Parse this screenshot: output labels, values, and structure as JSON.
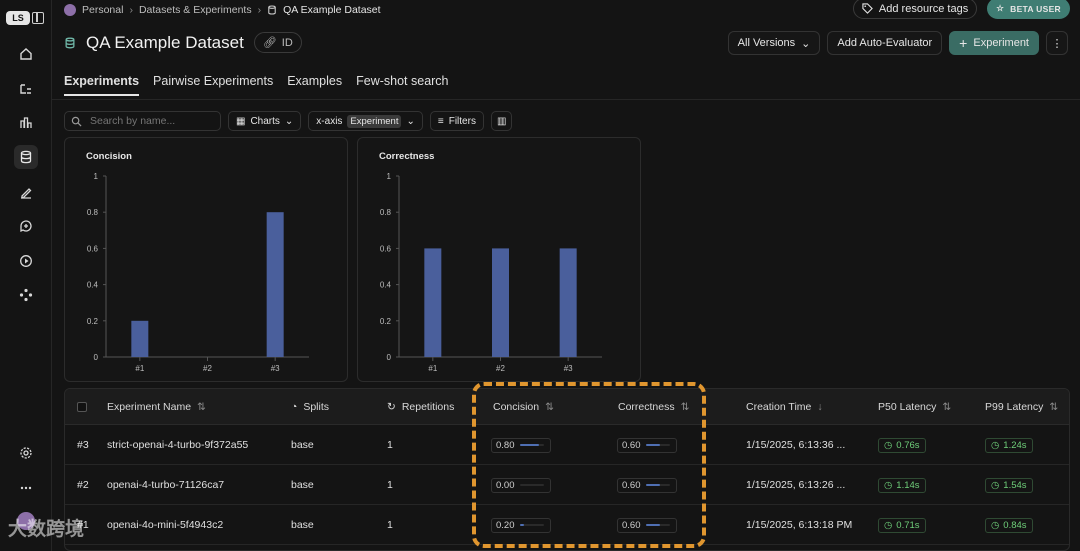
{
  "breadcrumb": {
    "items": [
      "Personal",
      "Datasets & Experiments",
      "QA Example Dataset"
    ]
  },
  "top_right": {
    "tags_label": "Add resource tags",
    "beta_label": "BETA USER"
  },
  "header": {
    "title": "QA Example Dataset",
    "id_label": "ID"
  },
  "actions": {
    "versions_label": "All Versions",
    "auto_eval_label": "Add Auto-Evaluator",
    "experiment_label": "Experiment"
  },
  "tabs": [
    {
      "label": "Experiments",
      "active": true
    },
    {
      "label": "Pairwise Experiments"
    },
    {
      "label": "Examples"
    },
    {
      "label": "Few-shot search"
    }
  ],
  "toolbar": {
    "search_placeholder": "Search by name...",
    "charts_label": "Charts",
    "xaxis_label": "x-axis",
    "xaxis_value": "Experiment",
    "filters_label": "Filters"
  },
  "chart_data": [
    {
      "type": "bar",
      "title": "Concision",
      "categories": [
        "#1",
        "#2",
        "#3"
      ],
      "values": [
        0.2,
        0.0,
        0.8
      ],
      "ylim": [
        0,
        1
      ],
      "yticks": [
        "0",
        "0.2",
        "0.4",
        "0.6",
        "0.8",
        "1"
      ],
      "color": "#4a5f9c"
    },
    {
      "type": "bar",
      "title": "Correctness",
      "categories": [
        "#1",
        "#2",
        "#3"
      ],
      "values": [
        0.6,
        0.6,
        0.6
      ],
      "ylim": [
        0,
        1
      ],
      "yticks": [
        "0",
        "0.2",
        "0.4",
        "0.6",
        "0.8",
        "1"
      ],
      "color": "#4a5f9c"
    }
  ],
  "table": {
    "columns": [
      "Experiment Name",
      "Splits",
      "Repetitions",
      "Concision",
      "Correctness",
      "Creation Time",
      "P50 Latency",
      "P99 Latency"
    ],
    "rows": [
      {
        "num": "#3",
        "name": "strict-openai-4-turbo-9f372a55",
        "split": "base",
        "reps": "1",
        "concision": "0.80",
        "concision_val": 0.8,
        "correctness": "0.60",
        "correctness_val": 0.6,
        "time": "1/15/2025, 6:13:36 ...",
        "p50": "0.76s",
        "p99": "1.24s"
      },
      {
        "num": "#2",
        "name": "openai-4-turbo-71126ca7",
        "split": "base",
        "reps": "1",
        "concision": "0.00",
        "concision_val": 0.0,
        "correctness": "0.60",
        "correctness_val": 0.6,
        "time": "1/15/2025, 6:13:26 ...",
        "p50": "1.14s",
        "p99": "1.54s"
      },
      {
        "num": "#1",
        "name": "openai-4o-mini-5f4943c2",
        "split": "base",
        "reps": "1",
        "concision": "0.20",
        "concision_val": 0.2,
        "correctness": "0.60",
        "correctness_val": 0.6,
        "time": "1/15/2025, 6:13:18 PM",
        "p50": "0.71s",
        "p99": "0.84s"
      }
    ]
  },
  "watermark": "大数跨境"
}
